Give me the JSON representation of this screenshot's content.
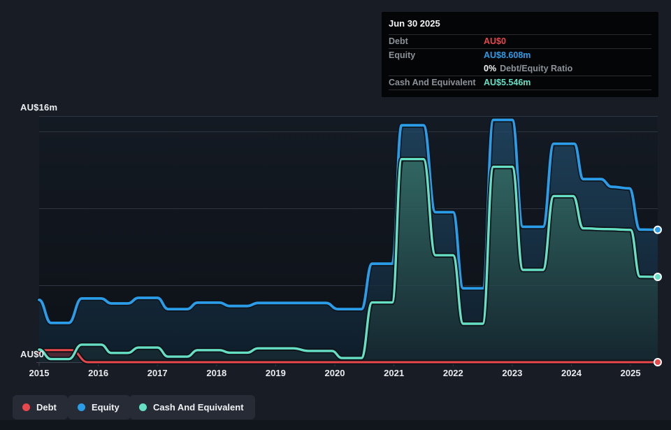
{
  "tooltip": {
    "date": "Jun 30 2025",
    "debt_label": "Debt",
    "debt_value": "AU$0",
    "equity_label": "Equity",
    "equity_value": "AU$8.608m",
    "ratio_value": "0%",
    "ratio_label": "Debt/Equity Ratio",
    "cash_label": "Cash And Equivalent",
    "cash_value": "AU$5.546m"
  },
  "colors": {
    "debt": "#e8484b",
    "equity": "#2b9de8",
    "cash": "#65e0c5",
    "background": "#171c25",
    "plot_background": "#10151d",
    "gridline": "#272e3a",
    "axis": "#3e4450",
    "tooltip_background": "#040507",
    "tooltip_label": "#8d9299",
    "legend_background": "#262b35"
  },
  "chart_data": {
    "type": "area",
    "x_unit": "year",
    "x_range": [
      2015.0,
      2025.46
    ],
    "y_max": 16,
    "y_unit": "AU$m",
    "y_gridlines": [
      16,
      15,
      10,
      5
    ],
    "x_ticks": [
      2015,
      2016,
      2017,
      2018,
      2019,
      2020,
      2021,
      2022,
      2023,
      2024,
      2025
    ],
    "y_axis": {
      "max_label": "AU$16m",
      "zero_label": "AU$0"
    },
    "last_point_date": "Jun 30 2025",
    "series": [
      {
        "key": "debt",
        "name": "Debt",
        "color": "#e8484b",
        "points": [
          [
            2015.0,
            0.62
          ],
          [
            2015.1,
            0.78
          ],
          [
            2015.55,
            0.78
          ],
          [
            2015.82,
            0.0
          ],
          [
            2016.5,
            0.0
          ],
          [
            2020.0,
            0.0
          ],
          [
            2025.46,
            0.0
          ]
        ]
      },
      {
        "key": "equity",
        "name": "Equity",
        "color": "#2b9de8",
        "points": [
          [
            2015.0,
            4.05
          ],
          [
            2015.2,
            2.55
          ],
          [
            2015.5,
            2.55
          ],
          [
            2015.72,
            4.14
          ],
          [
            2016.05,
            4.14
          ],
          [
            2016.22,
            3.82
          ],
          [
            2016.5,
            3.82
          ],
          [
            2016.68,
            4.18
          ],
          [
            2017.0,
            4.18
          ],
          [
            2017.18,
            3.45
          ],
          [
            2017.5,
            3.45
          ],
          [
            2017.68,
            3.87
          ],
          [
            2018.05,
            3.87
          ],
          [
            2018.22,
            3.65
          ],
          [
            2018.52,
            3.65
          ],
          [
            2018.7,
            3.85
          ],
          [
            2019.85,
            3.85
          ],
          [
            2020.05,
            3.45
          ],
          [
            2020.45,
            3.45
          ],
          [
            2020.63,
            6.4
          ],
          [
            2020.97,
            6.4
          ],
          [
            2021.13,
            15.4
          ],
          [
            2021.5,
            15.4
          ],
          [
            2021.7,
            9.75
          ],
          [
            2022.0,
            9.75
          ],
          [
            2022.17,
            4.8
          ],
          [
            2022.5,
            4.8
          ],
          [
            2022.68,
            15.75
          ],
          [
            2023.0,
            15.75
          ],
          [
            2023.18,
            8.8
          ],
          [
            2023.52,
            8.8
          ],
          [
            2023.7,
            14.2
          ],
          [
            2024.05,
            14.2
          ],
          [
            2024.2,
            11.9
          ],
          [
            2024.5,
            11.9
          ],
          [
            2024.68,
            11.4
          ],
          [
            2024.98,
            11.3
          ],
          [
            2025.16,
            8.62
          ],
          [
            2025.46,
            8.608
          ]
        ]
      },
      {
        "key": "cash",
        "name": "Cash And Equivalent",
        "color": "#65e0c5",
        "points": [
          [
            2015.0,
            0.82
          ],
          [
            2015.2,
            0.2
          ],
          [
            2015.5,
            0.2
          ],
          [
            2015.72,
            1.14
          ],
          [
            2016.05,
            1.14
          ],
          [
            2016.22,
            0.6
          ],
          [
            2016.5,
            0.6
          ],
          [
            2016.68,
            0.95
          ],
          [
            2017.0,
            0.95
          ],
          [
            2017.18,
            0.36
          ],
          [
            2017.5,
            0.36
          ],
          [
            2017.68,
            0.78
          ],
          [
            2018.05,
            0.78
          ],
          [
            2018.22,
            0.62
          ],
          [
            2018.52,
            0.62
          ],
          [
            2018.7,
            0.9
          ],
          [
            2019.3,
            0.9
          ],
          [
            2019.55,
            0.73
          ],
          [
            2019.95,
            0.73
          ],
          [
            2020.12,
            0.27
          ],
          [
            2020.45,
            0.27
          ],
          [
            2020.63,
            3.88
          ],
          [
            2020.97,
            3.88
          ],
          [
            2021.13,
            13.2
          ],
          [
            2021.5,
            13.2
          ],
          [
            2021.7,
            6.95
          ],
          [
            2022.0,
            6.95
          ],
          [
            2022.17,
            2.5
          ],
          [
            2022.5,
            2.5
          ],
          [
            2022.68,
            12.7
          ],
          [
            2023.0,
            12.7
          ],
          [
            2023.18,
            6.0
          ],
          [
            2023.52,
            6.0
          ],
          [
            2023.7,
            10.8
          ],
          [
            2024.03,
            10.8
          ],
          [
            2024.2,
            8.7
          ],
          [
            2024.6,
            8.65
          ],
          [
            2025.0,
            8.6
          ],
          [
            2025.16,
            5.56
          ],
          [
            2025.46,
            5.546
          ]
        ]
      }
    ]
  }
}
